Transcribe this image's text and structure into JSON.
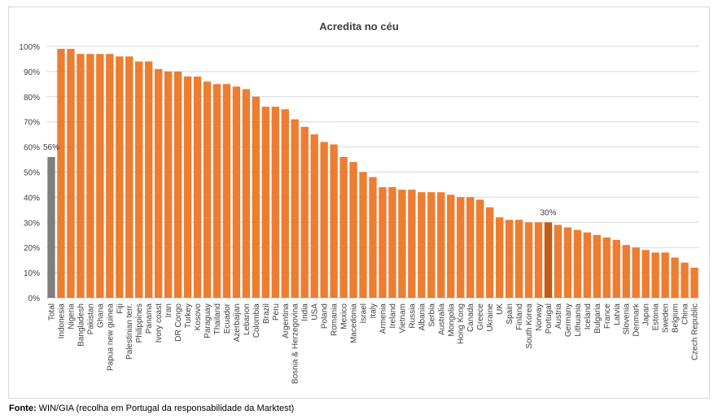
{
  "source": {
    "label": "Fonte:",
    "text": " WIN/GIA (recolha em Portugal da responsabilidade da Marktest)"
  },
  "colors": {
    "default": "#ED7D31",
    "total": "#7F7F7F",
    "highlight": "#C55A11"
  },
  "chart_data": {
    "type": "bar",
    "title": "Acredita no céu",
    "xlabel": "",
    "ylabel": "",
    "ylim": [
      0,
      100
    ],
    "yticks": [
      "0%",
      "10%",
      "20%",
      "30%",
      "40%",
      "50%",
      "60%",
      "70%",
      "80%",
      "90%",
      "100%"
    ],
    "grid": true,
    "legend": "none",
    "categories": [
      "Total",
      "Indonesia",
      "Nigeria",
      "Bangladesh",
      "Pakistan",
      "Ghana",
      "Papua new guinea",
      "Fiji",
      "Palestinian terr.",
      "Philippines",
      "Panama",
      "Ivory coast",
      "Iran",
      "DR Congo",
      "Turkey",
      "Kosovo",
      "Paraguay",
      "Thailand",
      "Ecuador",
      "Azerbaijan",
      "Lebanon",
      "Colombia",
      "Brazil",
      "Peru",
      "Argentina",
      "Bosnia & Herzegovina",
      "India",
      "USA",
      "Poland",
      "Romania",
      "Mexico",
      "Macedonia",
      "Israel",
      "Italy",
      "Armenia",
      "Ireland",
      "Vietnam",
      "Russia",
      "Albania",
      "Serbia",
      "Australia",
      "Mongolia",
      "Hong Kong",
      "Canada",
      "Greece",
      "Ukraine",
      "UK",
      "Spain",
      "Finland",
      "South Korea",
      "Norway",
      "Portugal",
      "Austria",
      "Germany",
      "Lithuania",
      "Iceland",
      "Bulgaria",
      "France",
      "Latvia",
      "Slovenia",
      "Denmark",
      "Japan",
      "Estonia",
      "Sweden",
      "Belgium",
      "China",
      "Czech Republic"
    ],
    "values": [
      56,
      99,
      99,
      97,
      97,
      97,
      97,
      96,
      96,
      94,
      94,
      91,
      90,
      90,
      88,
      88,
      86,
      85,
      85,
      84,
      83,
      80,
      76,
      76,
      75,
      71,
      68,
      65,
      62,
      61,
      56,
      54,
      50,
      48,
      44,
      44,
      43,
      43,
      42,
      42,
      42,
      41,
      40,
      40,
      39,
      36,
      32,
      31,
      31,
      30,
      30,
      30,
      29,
      28,
      27,
      26,
      25,
      24,
      23,
      21,
      20,
      19,
      18,
      18,
      16,
      14,
      12
    ],
    "data_labels": [
      {
        "category": "Total",
        "text": "56%"
      },
      {
        "category": "Portugal",
        "text": "30%"
      }
    ],
    "bar_colors": {
      "Total": "total",
      "Portugal": "highlight"
    }
  }
}
